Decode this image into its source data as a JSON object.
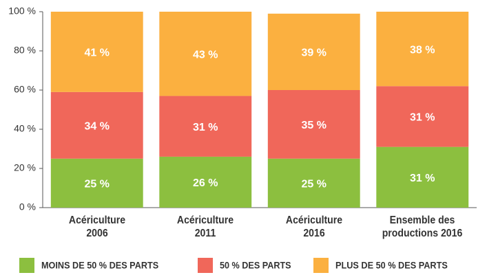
{
  "chart_data": {
    "type": "stacked_bar",
    "categories": [
      "Acériculture\n2006",
      "Acériculture\n2011",
      "Acériculture\n2016",
      "Ensemble des\nproductions 2016"
    ],
    "series": [
      {
        "name": "MOINS DE 50 % DES PARTS",
        "color": "#8cbf3f",
        "values": [
          25,
          26,
          25,
          31
        ],
        "value_labels": [
          "25 %",
          "26 %",
          "25 %",
          "31 %"
        ]
      },
      {
        "name": "50 % DES PARTS",
        "color": "#f0675a",
        "values": [
          34,
          31,
          35,
          31
        ],
        "value_labels": [
          "34 %",
          "31 %",
          "35 %",
          "31 %"
        ]
      },
      {
        "name": "PLUS DE 50 % DES PARTS",
        "color": "#fbb040",
        "values": [
          41,
          43,
          39,
          38
        ],
        "value_labels": [
          "41 %",
          "43 %",
          "39 %",
          "38 %"
        ]
      }
    ],
    "ylim": [
      0,
      100
    ],
    "yticks": [
      {
        "value": 0,
        "label": "0 %"
      },
      {
        "value": 20,
        "label": "20 %"
      },
      {
        "value": 40,
        "label": "40 %"
      },
      {
        "value": 60,
        "label": "60 %"
      },
      {
        "value": 80,
        "label": "80 %"
      },
      {
        "value": 100,
        "label": "100 %"
      }
    ],
    "legend": "bottom"
  }
}
